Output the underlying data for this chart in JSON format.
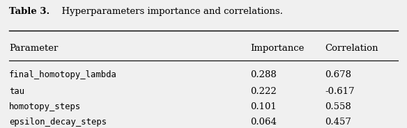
{
  "title_bold": "Table 3.",
  "title_rest": "  Hyperparameters importance and correlations.",
  "headers": [
    "Parameter",
    "Importance",
    "Correlation"
  ],
  "rows": [
    [
      "final_homotopy_lambda",
      "0.288",
      "0.678"
    ],
    [
      "tau",
      "0.222",
      "-0.617"
    ],
    [
      "homotopy_steps",
      "0.101",
      "0.558"
    ],
    [
      "epsilon_decay_steps",
      "0.064",
      "0.457"
    ]
  ],
  "bg_color": "#f0f0f0",
  "fig_width": 5.84,
  "fig_height": 1.84,
  "dpi": 100
}
